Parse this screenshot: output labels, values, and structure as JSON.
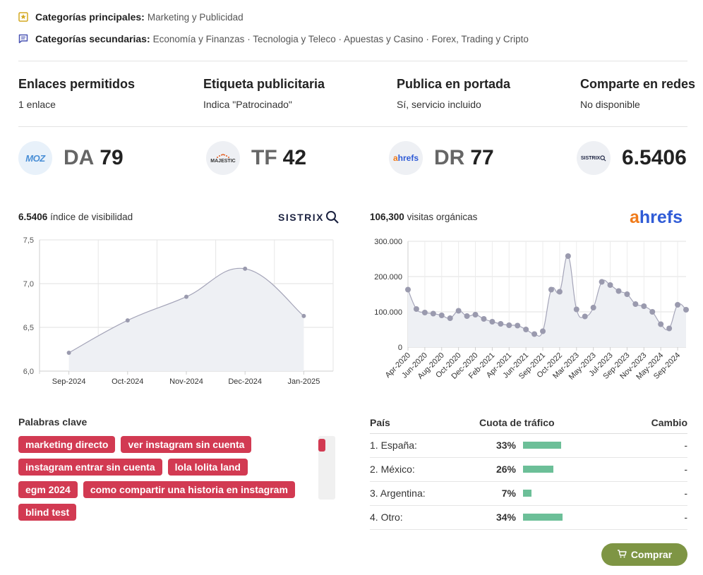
{
  "categories": {
    "primary_label": "Categorías principales:",
    "primary_value": "Marketing y Publicidad",
    "secondary_label": "Categorías secundarias:",
    "secondary_value": "Economía y Finanzas · Tecnologia y Teleco · Apuestas y Casino · Forex, Trading y Cripto"
  },
  "features": [
    {
      "title": "Enlaces permitidos",
      "value": "1 enlace"
    },
    {
      "title": "Etiqueta publicitaria",
      "value": "Indica \"Patrocinado\""
    },
    {
      "title": "Publica en portada",
      "value": "Sí, servicio incluido"
    },
    {
      "title": "Comparte en redes",
      "value": "No disponible"
    }
  ],
  "metrics": [
    {
      "logo": "MOZ",
      "label": "DA",
      "value": "79"
    },
    {
      "logo": "MAJESTIC",
      "label": "TF",
      "value": "42"
    },
    {
      "logo": "ahrefs",
      "label": "DR",
      "value": "77"
    },
    {
      "logo": "SISTRIX",
      "label": "",
      "value": "6.5406"
    }
  ],
  "sistrix": {
    "value": "6.5406",
    "caption": "índice de visibilidad",
    "brand": "SISTRIX"
  },
  "ahrefs": {
    "value": "106,300",
    "caption": "visitas orgánicas",
    "brand_a": "a",
    "brand_rest": "hrefs"
  },
  "chart_data": [
    {
      "type": "area",
      "categories": [
        "Sep-2024",
        "Oct-2024",
        "Nov-2024",
        "Dec-2024",
        "Jan-2025"
      ],
      "values": [
        6.21,
        6.58,
        6.85,
        7.17,
        6.63
      ],
      "ylim": [
        6.0,
        7.5
      ],
      "yticks": [
        "6,0",
        "6,5",
        "7,0",
        "7,5"
      ],
      "grid": true,
      "colors": {
        "line": "#a4a4b8",
        "fill": "#eef0f4",
        "point": "#9a9aae"
      }
    },
    {
      "type": "area",
      "x": [
        "Apr-2020",
        "May-2020",
        "Jun-2020",
        "Jul-2020",
        "Aug-2020",
        "Sep-2020",
        "Oct-2020",
        "Nov-2020",
        "Dec-2020",
        "Jan-2021",
        "Feb-2021",
        "Mar-2021",
        "Apr-2021",
        "May-2021",
        "Jun-2021",
        "Jul-2021",
        "Sep-2021",
        "Jan-2022",
        "Oct-2022",
        "Feb-2023",
        "Mar-2023",
        "Apr-2023",
        "May-2023",
        "Jun-2023",
        "Jul-2023",
        "Aug-2023",
        "Sep-2023",
        "Oct-2023",
        "Nov-2023",
        "Dec-2023",
        "May-2024",
        "Jun-2024",
        "Sep-2024",
        "Oct-2024"
      ],
      "values": [
        163000,
        108000,
        98000,
        95000,
        90000,
        82000,
        103000,
        88000,
        92000,
        80000,
        72000,
        66000,
        62000,
        61000,
        50000,
        37000,
        45000,
        163000,
        157000,
        258000,
        107000,
        87000,
        112000,
        185000,
        176000,
        159000,
        150000,
        122000,
        116000,
        100000,
        65000,
        53000,
        120000,
        106000
      ],
      "tick_labels": [
        "Apr-2020",
        "Jun-2020",
        "Aug-2020",
        "Oct-2020",
        "Dec-2020",
        "Feb-2021",
        "Apr-2021",
        "Jun-2021",
        "Sep-2021",
        "Oct-2022",
        "Mar-2023",
        "May-2023",
        "Jul-2023",
        "Sep-2023",
        "Nov-2023",
        "May-2024",
        "Sep-2024"
      ],
      "ylim": [
        0,
        300000
      ],
      "yticks": [
        "0",
        "100.000",
        "200.000",
        "300.000"
      ],
      "grid": true,
      "colors": {
        "line": "#a4a4b8",
        "fill": "#eef0f4",
        "point": "#9a9aae"
      }
    }
  ],
  "keywords": {
    "title": "Palabras clave",
    "items": [
      "marketing directo",
      "ver instagram sin cuenta",
      "instagram entrar sin cuenta",
      "lola lolita land",
      "egm 2024",
      "como compartir una historia en instagram",
      "blind test"
    ]
  },
  "traffic": {
    "headers": {
      "country": "País",
      "share": "Cuota de tráfico",
      "change": "Cambio"
    },
    "rows": [
      {
        "country": "1. España:",
        "pct": "33%",
        "share": 0.33,
        "change": "-"
      },
      {
        "country": "2. México:",
        "pct": "26%",
        "share": 0.26,
        "change": "-"
      },
      {
        "country": "3. Argentina:",
        "pct": "7%",
        "share": 0.07,
        "change": "-"
      },
      {
        "country": "4. Otro:",
        "pct": "34%",
        "share": 0.34,
        "change": "-"
      }
    ]
  },
  "buy_button": {
    "label": "Comprar"
  }
}
